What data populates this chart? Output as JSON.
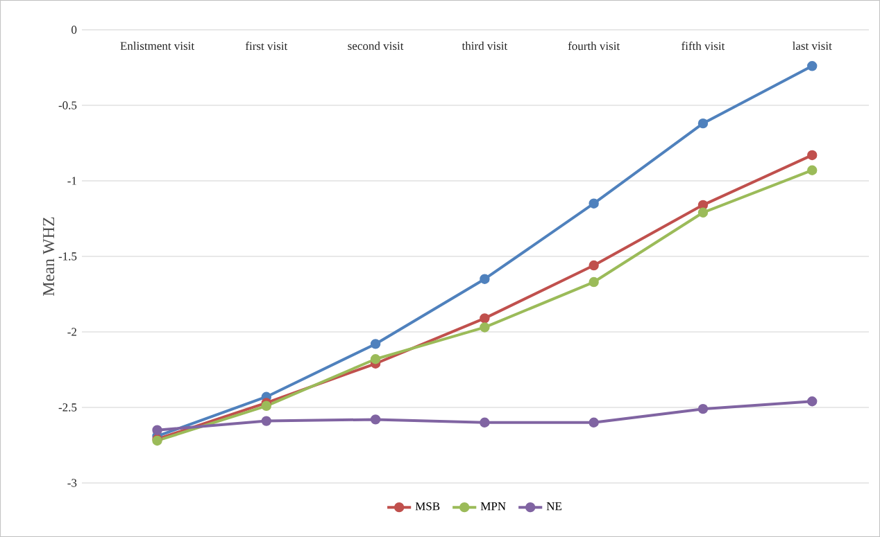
{
  "chart_data": {
    "type": "line",
    "ylabel": "Mean WHZ",
    "categories": [
      "Enlistment visit",
      "first visit",
      "second visit",
      "third visit",
      "fourth visit",
      "fifth visit",
      "last visit"
    ],
    "series": [
      {
        "color": "#4f81bd",
        "values": [
          -2.69,
          -2.43,
          -2.08,
          -1.65,
          -1.15,
          -0.62,
          -0.24
        ]
      },
      {
        "name": "MSB",
        "color": "#c0504d",
        "values": [
          -2.71,
          -2.47,
          -2.21,
          -1.91,
          -1.56,
          -1.16,
          -0.83
        ]
      },
      {
        "name": "MPN",
        "color": "#9bbb59",
        "values": [
          -2.72,
          -2.49,
          -2.18,
          -1.97,
          -1.67,
          -1.21,
          -0.93
        ]
      },
      {
        "name": "NE",
        "color": "#8064a2",
        "values": [
          -2.65,
          -2.59,
          -2.58,
          -2.6,
          -2.6,
          -2.51,
          -2.46
        ]
      }
    ],
    "ylim": [
      -3,
      0
    ],
    "yticks": [
      0,
      -0.5,
      -1,
      -1.5,
      -2,
      -2.5,
      -3
    ],
    "grid": "y",
    "legend": "bottom",
    "marker": "circle",
    "line_style": "solid"
  }
}
